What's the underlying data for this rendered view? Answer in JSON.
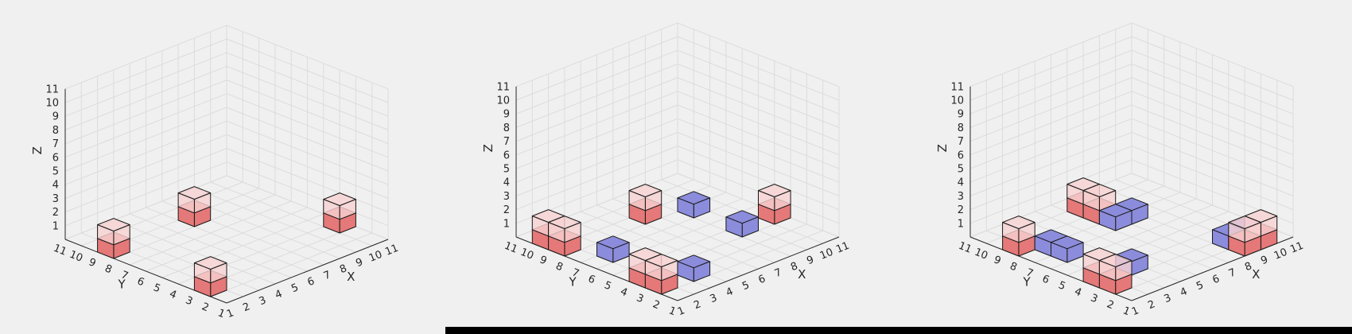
{
  "colors": {
    "background": "#f0f0f0",
    "red_solid": "#e57878",
    "red_light": "#f7d2d2",
    "blue": "#8c8cdc",
    "grid": "#dcdcdc",
    "axis": "#262626"
  },
  "chart_data": [
    {
      "type": "3d-voxel",
      "xlabel": "X",
      "ylabel": "Y",
      "zlabel": "Z",
      "xlim": [
        1,
        11
      ],
      "ylim": [
        1,
        11
      ],
      "zlim": [
        0,
        11
      ],
      "xticks": [
        "1",
        "2",
        "3",
        "4",
        "5",
        "6",
        "7",
        "8",
        "9",
        "10",
        "11"
      ],
      "yticks": [
        "1",
        "2",
        "3",
        "4",
        "5",
        "6",
        "7",
        "8",
        "9",
        "10",
        "11"
      ],
      "zticks": [
        "1",
        "2",
        "3",
        "4",
        "5",
        "6",
        "7",
        "8",
        "9",
        "10",
        "11"
      ],
      "grid": true,
      "red_cells": [
        [
          1,
          8
        ],
        [
          1,
          2
        ],
        [
          6,
          8
        ],
        [
          10,
          3
        ]
      ],
      "blue_cells": []
    },
    {
      "type": "3d-voxel",
      "xlabel": "X",
      "ylabel": "Y",
      "zlabel": "Z",
      "xlim": [
        1,
        11
      ],
      "ylim": [
        1,
        11
      ],
      "zlim": [
        0,
        11
      ],
      "xticks": [
        "1",
        "2",
        "3",
        "4",
        "5",
        "6",
        "7",
        "8",
        "9",
        "10",
        "11"
      ],
      "yticks": [
        "1",
        "2",
        "3",
        "4",
        "5",
        "6",
        "7",
        "8",
        "9",
        "10",
        "11"
      ],
      "zticks": [
        "1",
        "2",
        "3",
        "4",
        "5",
        "6",
        "7",
        "8",
        "9",
        "10",
        "11"
      ],
      "grid": true,
      "red_cells": [
        [
          1,
          9
        ],
        [
          1,
          8
        ],
        [
          1,
          3
        ],
        [
          1,
          2
        ],
        [
          6,
          8
        ],
        [
          10,
          4
        ]
      ],
      "blue_cells": [
        [
          2,
          6
        ],
        [
          3,
          2
        ],
        [
          8,
          7
        ],
        [
          8,
          4
        ]
      ]
    },
    {
      "type": "3d-voxel",
      "xlabel": "X",
      "ylabel": "Y",
      "zlabel": "Z",
      "xlim": [
        1,
        11
      ],
      "ylim": [
        1,
        11
      ],
      "zlim": [
        0,
        11
      ],
      "xticks": [
        "1",
        "2",
        "3",
        "4",
        "5",
        "6",
        "7",
        "8",
        "9",
        "10",
        "11"
      ],
      "yticks": [
        "1",
        "2",
        "3",
        "4",
        "5",
        "6",
        "7",
        "8",
        "9",
        "10",
        "11"
      ],
      "zticks": [
        "1",
        "2",
        "3",
        "4",
        "5",
        "6",
        "7",
        "8",
        "9",
        "10",
        "11"
      ],
      "grid": true,
      "red_cells": [
        [
          1,
          8
        ],
        [
          1,
          3
        ],
        [
          1,
          2
        ],
        [
          6,
          9
        ],
        [
          6,
          8
        ],
        [
          8,
          1
        ],
        [
          9,
          1
        ]
      ],
      "blue_cells": [
        [
          2,
          7
        ],
        [
          2,
          6
        ],
        [
          3,
          3
        ],
        [
          6,
          7
        ],
        [
          7,
          7
        ],
        [
          9,
          2
        ],
        [
          8,
          2
        ]
      ]
    }
  ]
}
